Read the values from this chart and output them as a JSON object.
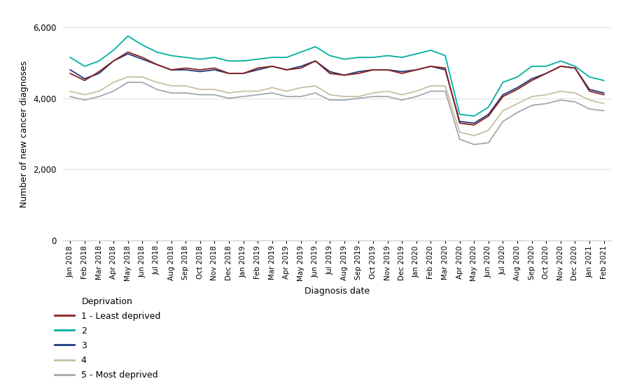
{
  "labels": [
    "Jan 2018",
    "Feb 2018",
    "Mar 2018",
    "Apr 2018",
    "May 2018",
    "Jun 2018",
    "Jul 2018",
    "Aug 2018",
    "Sep 2018",
    "Oct 2018",
    "Nov 2018",
    "Dec 2018",
    "Jan 2019",
    "Feb 2019",
    "Mar 2019",
    "Apr 2019",
    "May 2019",
    "Jun 2019",
    "Jul 2019",
    "Aug 2019",
    "Sep 2019",
    "Oct 2019",
    "Nov 2019",
    "Dec 2019",
    "Jan 2020",
    "Feb 2020",
    "Mar 2020",
    "Apr 2020",
    "May 2020",
    "Jun 2020",
    "Jul 2020",
    "Aug 2020",
    "Sep 2020",
    "Oct 2020",
    "Nov 2020",
    "Dec 2020",
    "Jan 2021",
    "Feb 2021"
  ],
  "series": {
    "1 - Least deprived": [
      4700,
      4500,
      4750,
      5050,
      5300,
      5150,
      4950,
      4800,
      4850,
      4800,
      4850,
      4700,
      4700,
      4850,
      4900,
      4800,
      4850,
      5050,
      4700,
      4650,
      4700,
      4800,
      4800,
      4700,
      4800,
      4900,
      4850,
      3300,
      3250,
      3500,
      4050,
      4250,
      4500,
      4700,
      4900,
      4850,
      4200,
      4100
    ],
    "2": [
      5150,
      4900,
      5050,
      5350,
      5750,
      5500,
      5300,
      5200,
      5150,
      5100,
      5150,
      5050,
      5050,
      5100,
      5150,
      5150,
      5300,
      5450,
      5200,
      5100,
      5150,
      5150,
      5200,
      5150,
      5250,
      5350,
      5200,
      3550,
      3500,
      3750,
      4450,
      4600,
      4900,
      4900,
      5050,
      4900,
      4600,
      4500
    ],
    "3": [
      4800,
      4550,
      4700,
      5050,
      5250,
      5100,
      4950,
      4800,
      4800,
      4750,
      4800,
      4700,
      4700,
      4800,
      4900,
      4800,
      4900,
      5050,
      4750,
      4650,
      4750,
      4800,
      4800,
      4750,
      4800,
      4900,
      4800,
      3350,
      3300,
      3550,
      4100,
      4300,
      4550,
      4700,
      4900,
      4850,
      4250,
      4150
    ],
    "4": [
      4200,
      4100,
      4200,
      4450,
      4600,
      4600,
      4450,
      4350,
      4350,
      4250,
      4250,
      4150,
      4200,
      4200,
      4300,
      4200,
      4300,
      4350,
      4100,
      4050,
      4050,
      4150,
      4200,
      4100,
      4200,
      4350,
      4350,
      3050,
      2950,
      3100,
      3650,
      3850,
      4050,
      4100,
      4200,
      4150,
      3950,
      3850
    ],
    "5 - Most deprived": [
      4050,
      3950,
      4050,
      4200,
      4450,
      4450,
      4250,
      4150,
      4150,
      4100,
      4100,
      4000,
      4050,
      4100,
      4150,
      4050,
      4050,
      4150,
      3950,
      3950,
      4000,
      4050,
      4050,
      3950,
      4050,
      4200,
      4200,
      2850,
      2700,
      2750,
      3350,
      3600,
      3800,
      3850,
      3950,
      3900,
      3700,
      3650
    ]
  },
  "colors": {
    "1 - Least deprived": "#8B2020",
    "2": "#00B0A0",
    "3": "#1F3A7A",
    "4": "#C8BFA0",
    "5 - Most deprived": "#A0A8B0"
  },
  "ylabel": "Number of new cancer diagnoses",
  "xlabel": "Diagnosis date",
  "ylim": [
    0,
    6000
  ],
  "yticks": [
    0,
    2000,
    4000,
    6000
  ],
  "legend_title": "Deprivation",
  "background_color": "#ffffff",
  "grid_color": "#e0e0e0"
}
